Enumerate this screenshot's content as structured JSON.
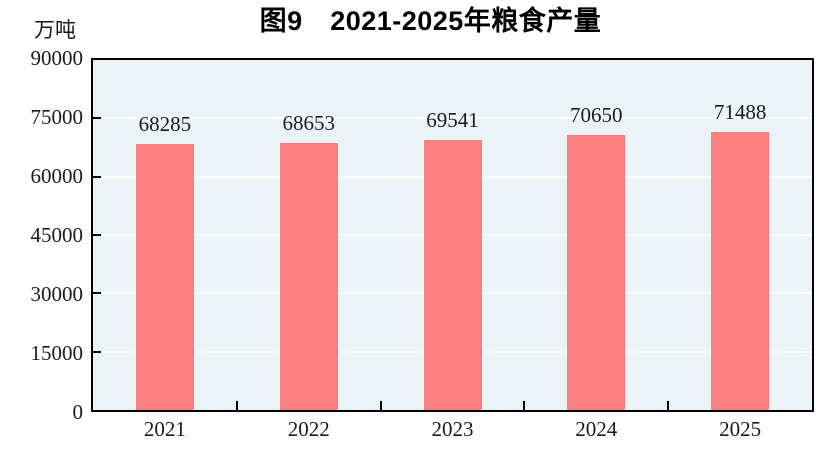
{
  "chart_data": {
    "type": "bar",
    "title": "图9　2021-2025年粮食产量",
    "ylabel": "万吨",
    "xlabel": "",
    "categories": [
      "2021",
      "2022",
      "2023",
      "2024",
      "2025"
    ],
    "values": [
      68285,
      68653,
      69541,
      70650,
      71488
    ],
    "ylim": [
      0,
      90000
    ],
    "yticks": [
      0,
      15000,
      30000,
      45000,
      60000,
      75000,
      90000
    ],
    "grid": true,
    "legend": "none",
    "bar_color": "#fc7f7f",
    "plot_background": "#ecf3f7",
    "gridline_color": "#ffffff",
    "frame_color": "#000000"
  }
}
